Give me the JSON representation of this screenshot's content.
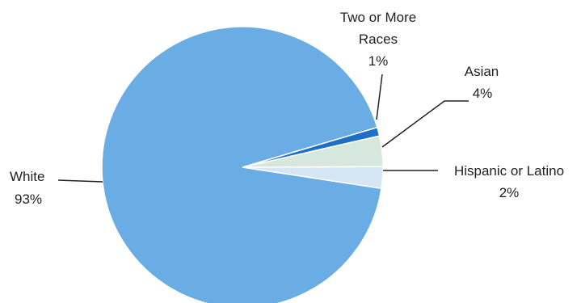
{
  "chart_data": {
    "type": "pie",
    "title": "",
    "slices": [
      {
        "label": "White",
        "percent_label": "93%",
        "value": 93,
        "color": "#6aade4"
      },
      {
        "label": "Two or More Races",
        "label_lines": [
          "Two or More",
          "Races"
        ],
        "percent_label": "1%",
        "value": 1,
        "color": "#1f6fc8"
      },
      {
        "label": "Asian",
        "percent_label": "4%",
        "value": 3.5,
        "color": "#d6e8dd"
      },
      {
        "label": "Hispanic or Latino",
        "percent_label": "2%",
        "value": 2.5,
        "color": "#d7e6f5"
      }
    ],
    "legend": "none"
  }
}
